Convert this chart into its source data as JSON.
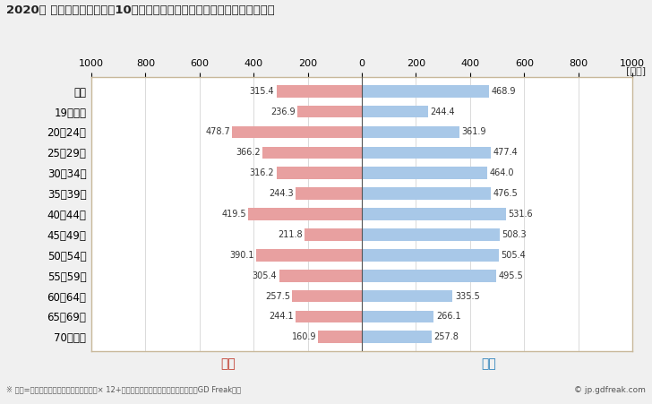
{
  "title": "2020年 民間企業（従業者数10人以上）フルタイム労働者の男女別平均年収",
  "unit_label": "[万円]",
  "female_label": "女性",
  "male_label": "男性",
  "footnote": "※ 年収=「きまって支給する現金給与額」× 12+「年間賞与その他特別給与額」としてGD Freak推計",
  "copyright": "© jp.gdfreak.com",
  "categories": [
    "全体",
    "19歳以下",
    "20〜24歳",
    "25〜29歳",
    "30〜34歳",
    "35〜39歳",
    "40〜44歳",
    "45〜49歳",
    "50〜54歳",
    "55〜59歳",
    "60〜64歳",
    "65〜69歳",
    "70歳以上"
  ],
  "female_values": [
    315.4,
    236.9,
    478.7,
    366.2,
    316.2,
    244.3,
    419.5,
    211.8,
    390.1,
    305.4,
    257.5,
    244.1,
    160.9
  ],
  "male_values": [
    468.9,
    244.4,
    361.9,
    477.4,
    464.0,
    476.5,
    531.6,
    508.3,
    505.4,
    495.5,
    335.5,
    266.1,
    257.8
  ],
  "female_color": "#e8a0a0",
  "male_color": "#a8c8e8",
  "female_label_color": "#c0392b",
  "male_label_color": "#2980b9",
  "axis_color": "#c8b89a",
  "background_color": "#f0f0f0",
  "plot_bg_color": "#ffffff",
  "xlim": 1000,
  "bar_height": 0.6
}
